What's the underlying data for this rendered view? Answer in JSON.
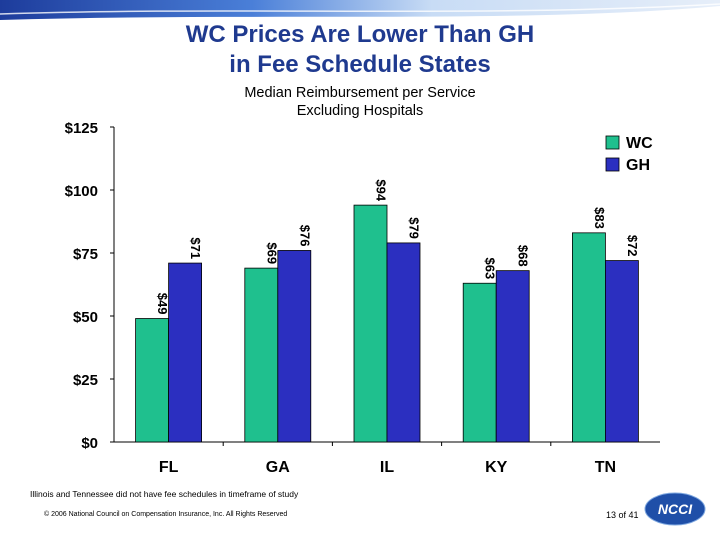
{
  "slide": {
    "title_line1": "WC Prices Are Lower Than GH",
    "title_line2": "in Fee Schedule States",
    "subtitle_line1": "Median Reimbursement per Service",
    "subtitle_line2": "Excluding Hospitals",
    "footnote": "Illinois and Tennessee did not have fee schedules in timeframe of study",
    "copyright": "© 2006 National Council on Compensation Insurance, Inc. All Rights Reserved",
    "page_number": "13 of 41",
    "logo_text": "NCCI"
  },
  "colors": {
    "title": "#1f3a8f",
    "wc": "#1fc08e",
    "gh": "#2b2fc0"
  },
  "chart_data": {
    "type": "bar",
    "title": "Median Reimbursement per Service Excluding Hospitals",
    "categories": [
      "FL",
      "GA",
      "IL",
      "KY",
      "TN"
    ],
    "series": [
      {
        "name": "WC",
        "values": [
          49,
          69,
          94,
          63,
          83
        ],
        "labels": [
          "$49",
          "$69",
          "$94",
          "$63",
          "$83"
        ]
      },
      {
        "name": "GH",
        "values": [
          71,
          76,
          79,
          68,
          72
        ],
        "labels": [
          "$71",
          "$76",
          "$79",
          "$68",
          "$72"
        ]
      }
    ],
    "ylim": [
      0,
      125
    ],
    "yticks": [
      0,
      25,
      50,
      75,
      100,
      125
    ],
    "ytick_labels": [
      "$0",
      "$25",
      "$50",
      "$75",
      "$100",
      "$125"
    ],
    "xlabel": "",
    "ylabel": "",
    "grid": false,
    "legend_position": "top-right"
  }
}
